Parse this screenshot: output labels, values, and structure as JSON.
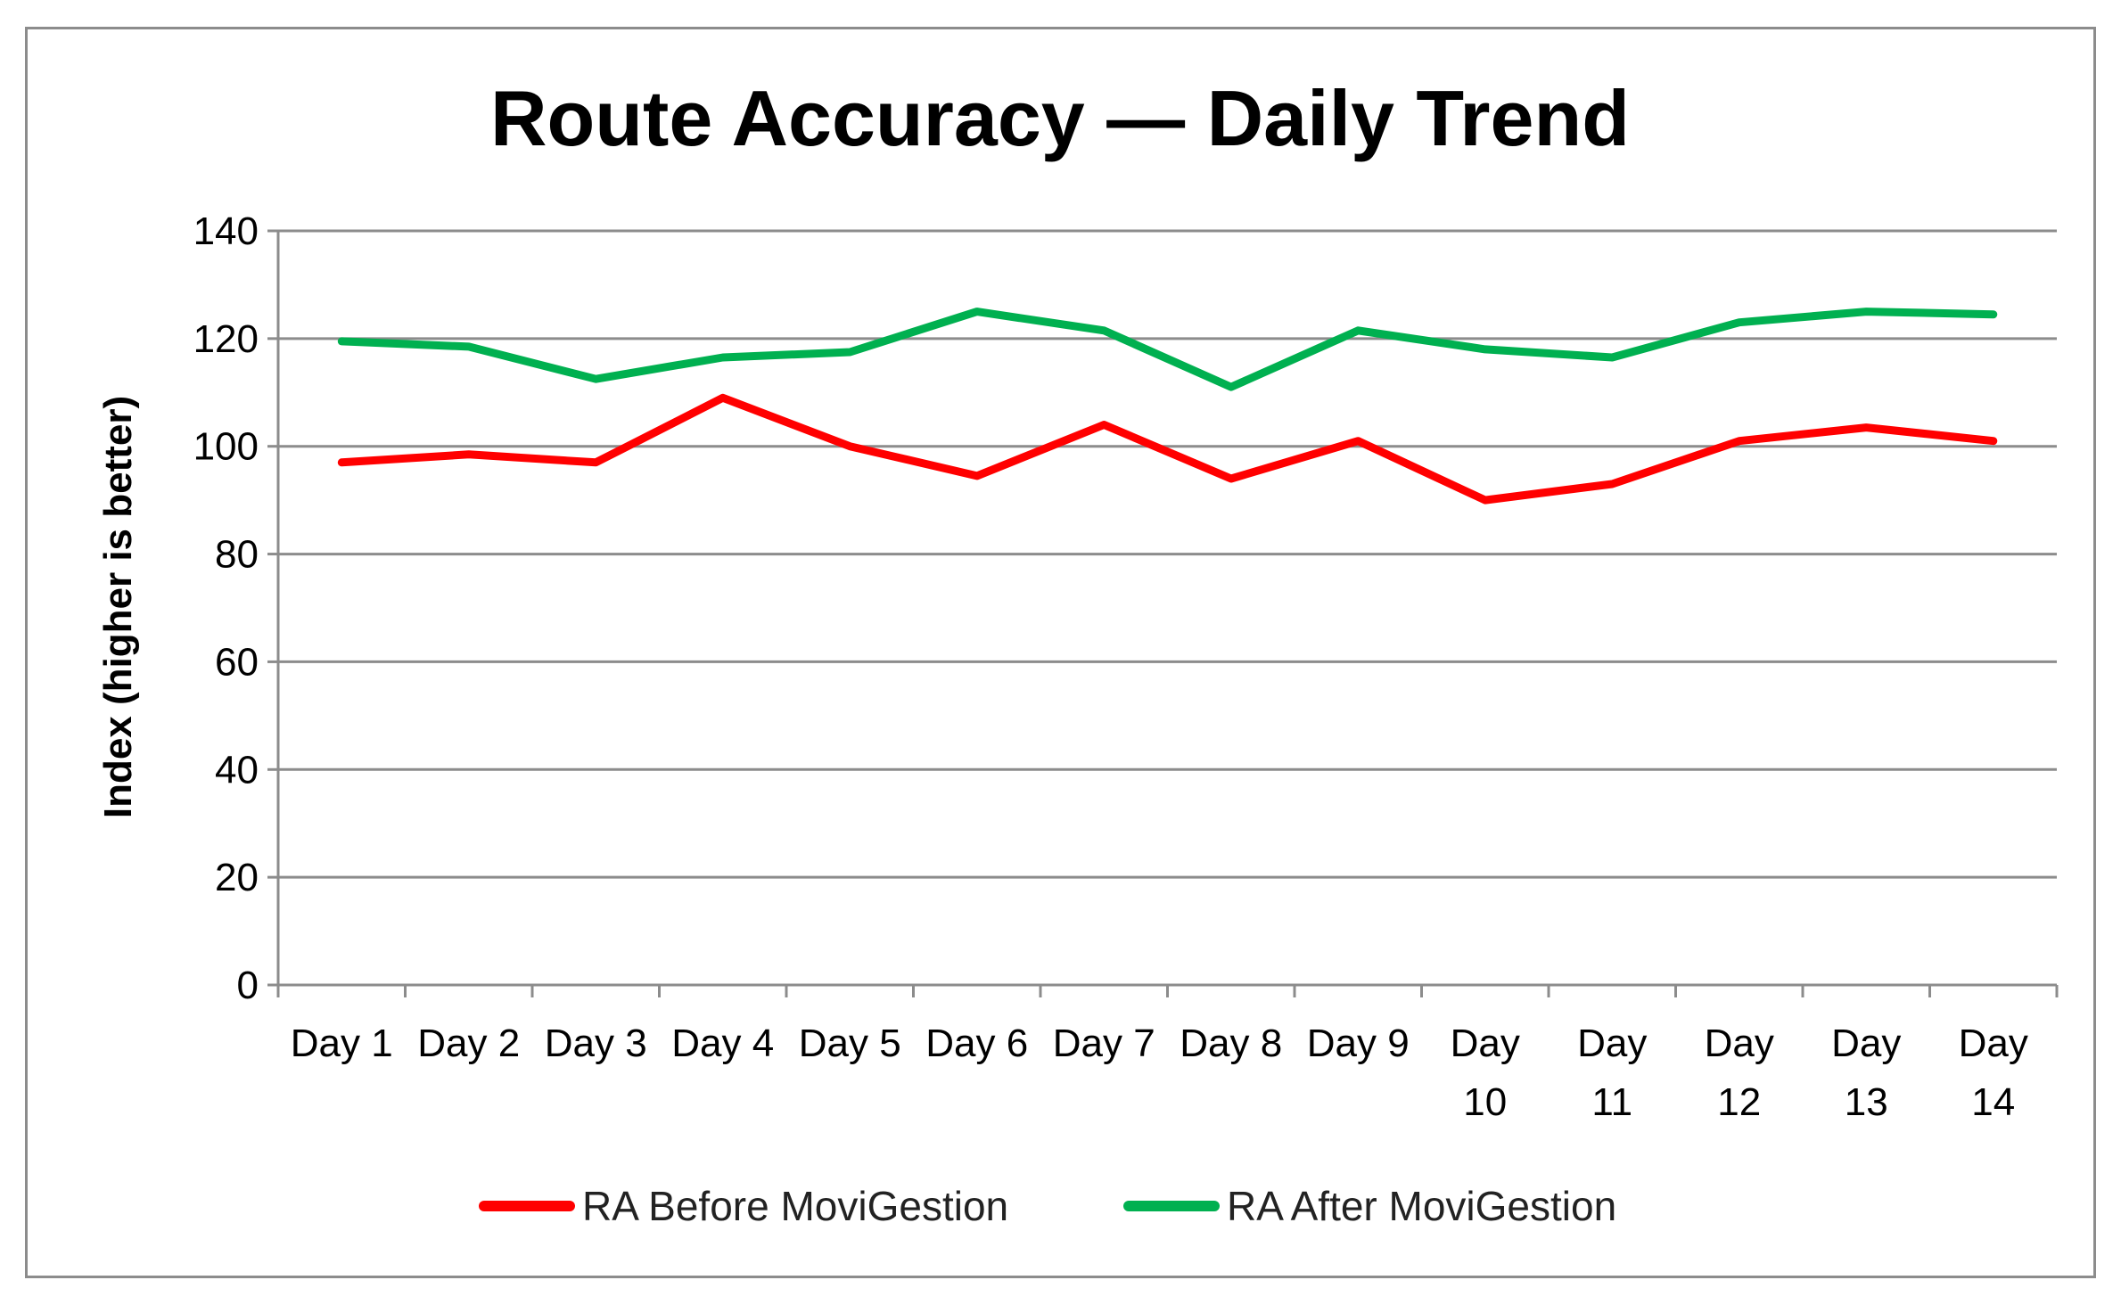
{
  "chart_data": {
    "type": "line",
    "title": "Route Accuracy — Daily Trend",
    "xlabel": "",
    "ylabel": "Index (higher is better)",
    "ylim": [
      0,
      140
    ],
    "yticks": [
      0,
      20,
      40,
      60,
      80,
      100,
      120,
      140
    ],
    "grid": true,
    "legend_position": "bottom",
    "categories": [
      [
        "Day 1"
      ],
      [
        "Day 2"
      ],
      [
        "Day 3"
      ],
      [
        "Day 4"
      ],
      [
        "Day 5"
      ],
      [
        "Day 6"
      ],
      [
        "Day 7"
      ],
      [
        "Day 8"
      ],
      [
        "Day 9"
      ],
      [
        "Day",
        "10"
      ],
      [
        "Day",
        "11"
      ],
      [
        "Day",
        "12"
      ],
      [
        "Day",
        "13"
      ],
      [
        "Day",
        "14"
      ]
    ],
    "series": [
      {
        "name": "RA Before MoviGestion",
        "color": "#ff0000",
        "values": [
          97,
          98.5,
          97,
          109,
          100,
          94.5,
          104,
          94,
          101,
          90,
          93,
          101,
          103.5,
          101
        ]
      },
      {
        "name": "RA After MoviGestion",
        "color": "#00b050",
        "values": [
          119.5,
          118.5,
          112.5,
          116.5,
          117.5,
          125,
          121.5,
          111,
          121.5,
          118,
          116.5,
          123,
          125,
          124.5
        ]
      }
    ]
  }
}
